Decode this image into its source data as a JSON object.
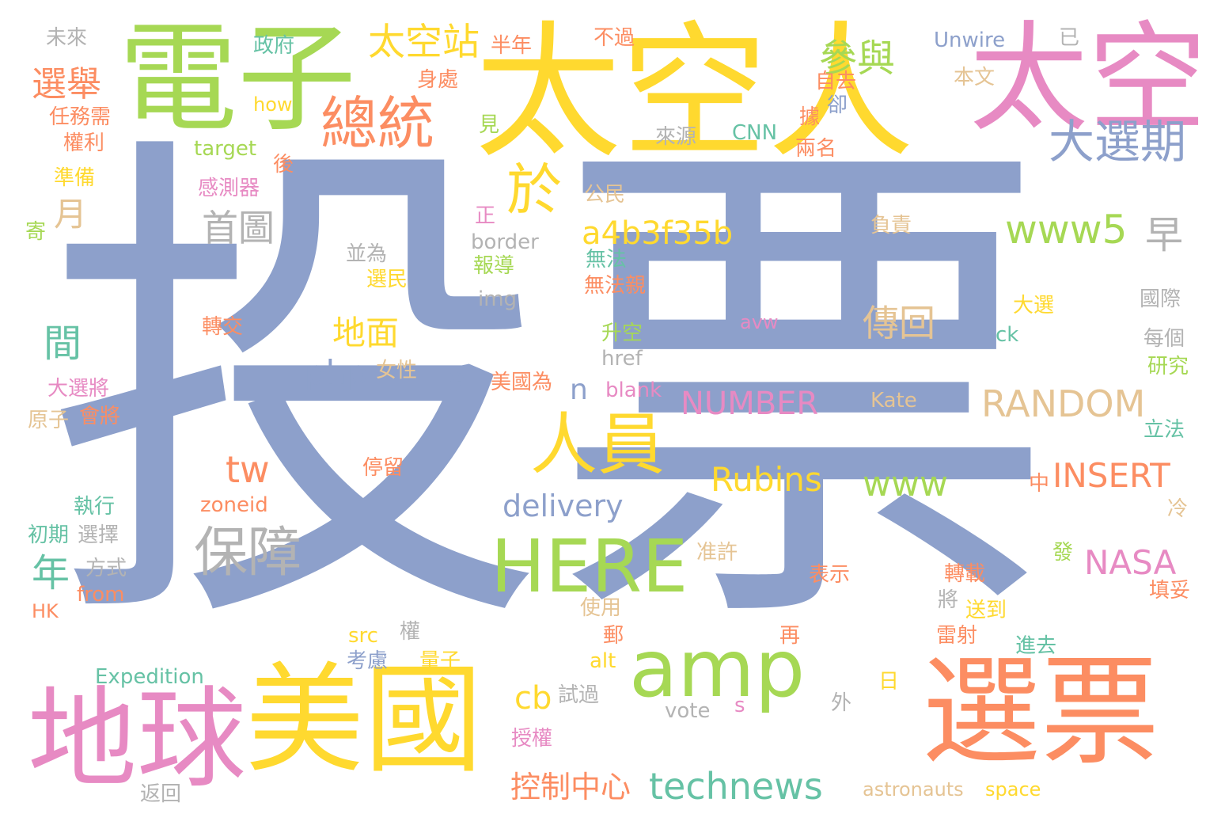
{
  "palette": {
    "blue": "#8da0cb",
    "yellow": "#ffd92f",
    "green": "#a6d854",
    "pink": "#e78ac3",
    "orange": "#fc8d62",
    "teal": "#66c2a5",
    "tan": "#e5c494",
    "gray": "#b3b3b3"
  },
  "words": [
    "投票",
    "太空人",
    "電子",
    "太空",
    "美國",
    "選票",
    "地球",
    "amp",
    "HERE",
    "總統",
    "於",
    "人員",
    "大選期",
    "保障",
    "technews",
    "參與",
    "太空站",
    "選舉",
    "www5",
    "a4b3f35b",
    "Rubins",
    "www",
    "RANDOM",
    "NUMBER",
    "INSERT",
    "NASA",
    "delivery",
    "首圖",
    "傳回",
    "控制中心",
    "地面",
    "php",
    "tw",
    "cb",
    "間",
    "月",
    "年",
    "早",
    "a",
    "n",
    "未來",
    "政府",
    "半年",
    "不過",
    "Unwire",
    "已",
    "身處",
    "自去",
    "本文",
    "how",
    "任務需",
    "權利",
    "見",
    "CNN",
    "據",
    "卻",
    "來源",
    "兩名",
    "target",
    "後",
    "準備",
    "感測器",
    "公民",
    "寄",
    "正",
    "負責",
    "border",
    "並為",
    "報導",
    "無法",
    "無法親",
    "選民",
    "img",
    "大選",
    "國際",
    "轉交",
    "avw",
    "升空",
    "ck",
    "href",
    "每個",
    "研究",
    "女性",
    "大選將",
    "美國為",
    "blank",
    "會將",
    "原子",
    "Kate",
    "立法",
    "停留",
    "中",
    "zoneid",
    "執行",
    "冷",
    "初期",
    "選擇",
    "准許",
    "發",
    "方式",
    "表示",
    "轉載",
    "HK",
    "from",
    "使用",
    "將",
    "送到",
    "填妥",
    "src",
    "權",
    "郵",
    "再",
    "雷射",
    "考慮",
    "量子",
    "alt",
    "進去",
    "Expedition",
    "試過",
    "日",
    "外",
    "vote",
    "s",
    "授權",
    "返回",
    "astronauts",
    "space"
  ]
}
